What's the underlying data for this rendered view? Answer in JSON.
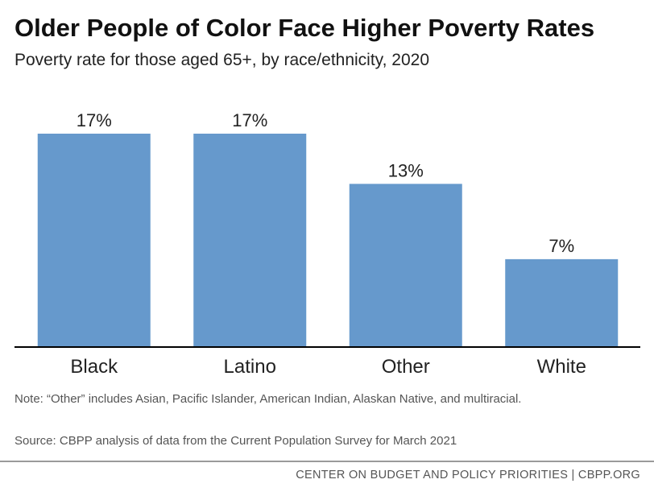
{
  "chart_data": {
    "type": "bar",
    "title": "Older People of Color Face Higher Poverty Rates",
    "subtitle": "Poverty rate for those aged 65+, by race/ethnicity, 2020",
    "categories": [
      "Black",
      "Latino",
      "Other",
      "White"
    ],
    "values": [
      17,
      17,
      13,
      7
    ],
    "data_labels": [
      "17%",
      "17%",
      "13%",
      "7%"
    ],
    "xlabel": "",
    "ylabel": "",
    "ylim": [
      0,
      17
    ],
    "grid": false,
    "legend": "none",
    "bar_color": "#6699CC"
  },
  "notes": {
    "note": "Note: “Other” includes Asian, Pacific Islander, American Indian, Alaskan Native, and multiracial.",
    "source": "Source: CBPP analysis of data from the Current Population Survey for March 2021"
  },
  "footer": {
    "credit": "CENTER ON BUDGET AND POLICY PRIORITIES | CBPP.ORG"
  },
  "colors": {
    "bar": "#6699CC",
    "axis": "#000000",
    "text": "#222222",
    "muted_text": "#555555",
    "rule": "#9A9A9A"
  }
}
